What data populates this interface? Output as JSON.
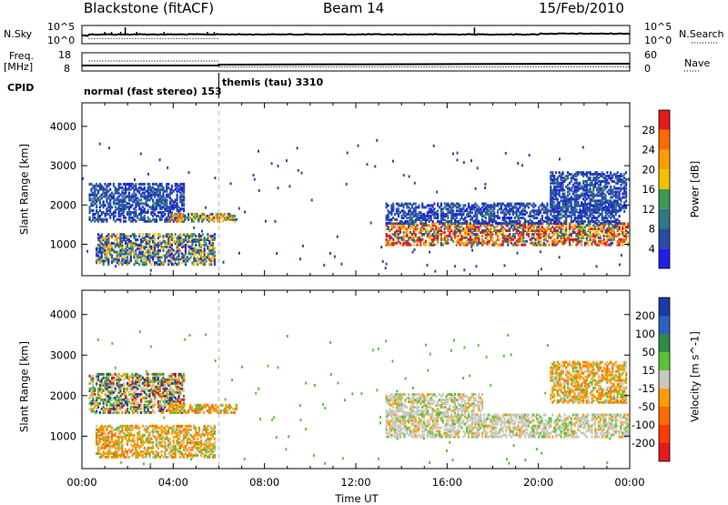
{
  "header": {
    "title": "Blackstone (fitACF)",
    "beam": "Beam 14",
    "date": "15/Feb/2010"
  },
  "top_panels": {
    "nsky_label": "N.Sky",
    "nsearch_label": "N.Search",
    "noise_ticks": [
      "10^5",
      "10^0"
    ],
    "freq_label": "Freq.",
    "freq_unit": "[MHz]",
    "freq_ticks": [
      "18",
      "8"
    ],
    "nave_label": "Nave",
    "nave_ticks": [
      "60",
      "0"
    ],
    "cpid_label": "CPID",
    "modes": [
      {
        "name": "normal (fast stereo)",
        "id": "153",
        "start_hour": 0,
        "end_hour": 6.0
      },
      {
        "name": "themis (tau)",
        "id": "3310",
        "start_hour": 6.0,
        "end_hour": 24
      }
    ]
  },
  "chart_data": [
    {
      "type": "heatmap",
      "parameter": "Power",
      "ylabel": "Slant Range [km]",
      "colorbar_label": "Power [dB]",
      "colorbar_ticks": [
        "28",
        "24",
        "20",
        "16",
        "12",
        "8",
        "4"
      ],
      "colorbar_colors": [
        "#e41a1c",
        "#ff6a00",
        "#ff9d00",
        "#f2c200",
        "#3a9a55",
        "#2e7a80",
        "#2a4aa6",
        "#1e1ee8"
      ],
      "xlim": [
        0,
        24
      ],
      "ylim": [
        200,
        4600
      ],
      "ytick_labels": [
        "1000",
        "2000",
        "3000",
        "4000"
      ],
      "regions": [
        {
          "t0": 0.6,
          "t1": 5.8,
          "r0": 450,
          "r1": 1250,
          "level": "mixed-low"
        },
        {
          "t0": 0.3,
          "t1": 4.5,
          "r0": 1550,
          "r1": 2500,
          "level": "low"
        },
        {
          "t0": 3.8,
          "t1": 6.8,
          "r0": 1550,
          "r1": 1750,
          "level": "medium"
        },
        {
          "t0": 13.3,
          "t1": 23.9,
          "r0": 950,
          "r1": 1500,
          "level": "high"
        },
        {
          "t0": 13.3,
          "t1": 23.5,
          "r0": 1500,
          "r1": 2000,
          "level": "low"
        },
        {
          "t0": 20.5,
          "t1": 23.8,
          "r0": 1800,
          "r1": 2800,
          "level": "low"
        }
      ]
    },
    {
      "type": "heatmap",
      "parameter": "Velocity",
      "ylabel": "Slant Range [km]",
      "colorbar_label": "Velocity [m s^-1]",
      "colorbar_ticks": [
        "200",
        "100",
        "50",
        "15",
        "-15",
        "-50",
        "-100",
        "-200"
      ],
      "colorbar_colors": [
        "#1a3aa6",
        "#2e5fc0",
        "#2f8a4a",
        "#5cc23a",
        "#c8c8c0",
        "#ff9d00",
        "#ff6a00",
        "#ff3a00",
        "#e41a1c"
      ],
      "xlim": [
        0,
        24
      ],
      "ylim": [
        200,
        4600
      ],
      "ytick_labels": [
        "1000",
        "2000",
        "3000",
        "4000"
      ],
      "xlabel": "Time UT",
      "xtick_labels": [
        "00:00",
        "04:00",
        "08:00",
        "12:00",
        "16:00",
        "20:00",
        "00:00"
      ],
      "regions": [
        {
          "t0": 0.6,
          "t1": 5.8,
          "r0": 450,
          "r1": 1250,
          "level": "away"
        },
        {
          "t0": 0.3,
          "t1": 4.5,
          "r0": 1550,
          "r1": 2500,
          "level": "mixed"
        },
        {
          "t0": 3.8,
          "t1": 6.8,
          "r0": 1550,
          "r1": 1750,
          "level": "away"
        },
        {
          "t0": 13.3,
          "t1": 23.9,
          "r0": 950,
          "r1": 1500,
          "level": "ground"
        },
        {
          "t0": 13.3,
          "t1": 17.5,
          "r0": 1500,
          "r1": 2000,
          "level": "ground"
        },
        {
          "t0": 20.5,
          "t1": 23.8,
          "r0": 1800,
          "r1": 2800,
          "level": "away"
        }
      ]
    }
  ]
}
